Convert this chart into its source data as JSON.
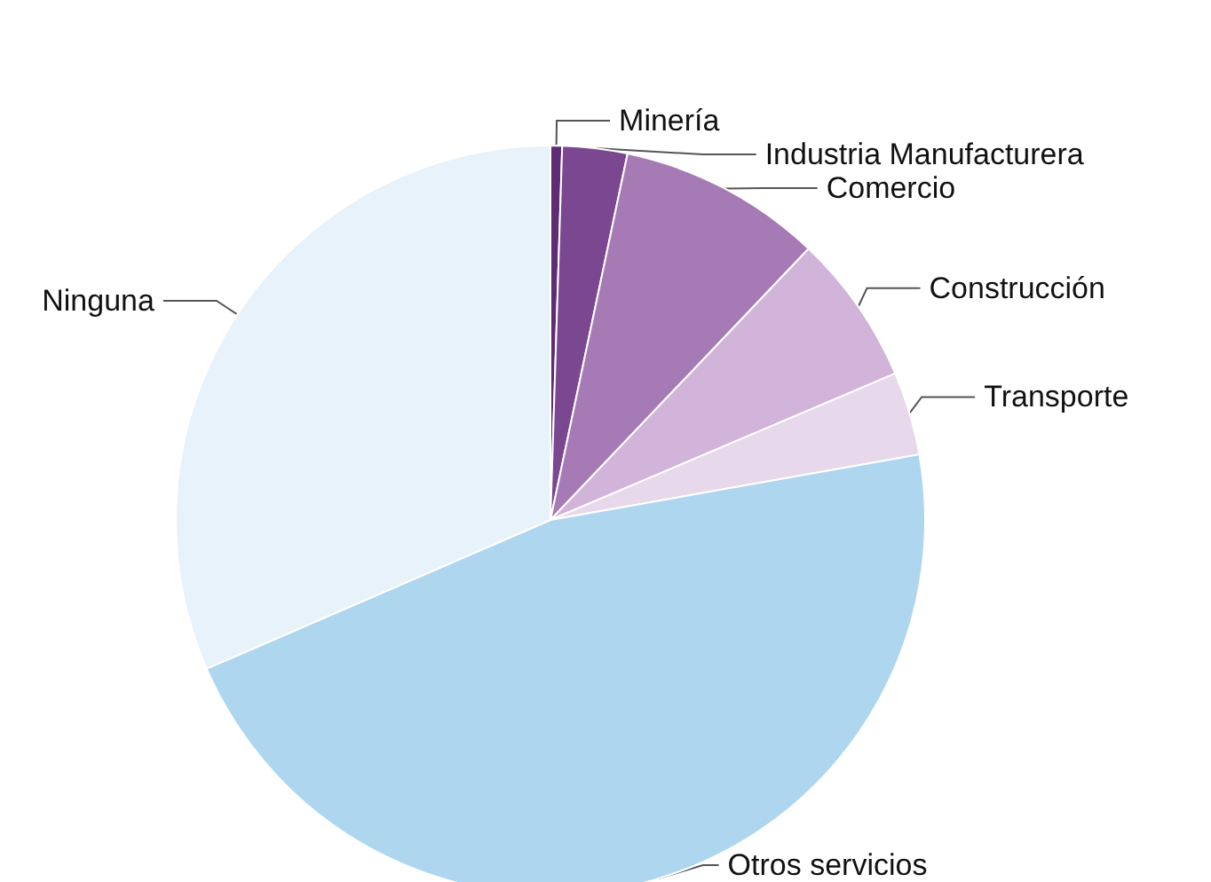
{
  "chart_data": {
    "type": "pie",
    "categories": [
      "Minería",
      "Industria Manufacturera",
      "Comercio",
      "Construcción",
      "Transporte",
      "Otros servicios",
      "Ninguna"
    ],
    "values": [
      0.5,
      2.8,
      8.8,
      6.5,
      3.6,
      46.3,
      31.5
    ],
    "colors": [
      "#5e2d74",
      "#7b4790",
      "#a67bb5",
      "#d2b3d9",
      "#e8d8ec",
      "#afd6ef",
      "#e8f2fa"
    ],
    "legend": false
  }
}
